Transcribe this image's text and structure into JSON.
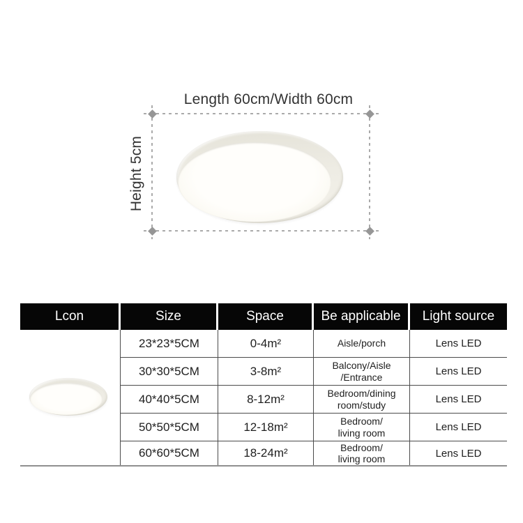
{
  "diagram": {
    "length_label": "Length 60cm/Width 60cm",
    "height_label": "Height 5cm",
    "lamp_icon": "round-ceiling-lamp",
    "dash_color": "#aaaaaa",
    "marker_color": "#969696"
  },
  "table": {
    "headers": [
      "Lcon",
      "Size",
      "Space",
      "Be applicable",
      "Light source"
    ],
    "header_bg": "#060606",
    "header_text_color": "#ffffff",
    "icon": "round-ceiling-lamp",
    "rows": [
      {
        "size": "23*23*5CM",
        "space": "0-4m²",
        "applicable": "Aisle/porch",
        "light_source": "Lens LED"
      },
      {
        "size": "30*30*5CM",
        "space": "3-8m²",
        "applicable": "Balcony/Aisle\n/Entrance",
        "light_source": "Lens LED"
      },
      {
        "size": "40*40*5CM",
        "space": "8-12m²",
        "applicable": "Bedroom/dining\nroom/study",
        "light_source": "Lens LED"
      },
      {
        "size": "50*50*5CM",
        "space": "12-18m²",
        "applicable": "Bedroom/\nliving room",
        "light_source": "Lens LED"
      },
      {
        "size": "60*60*5CM",
        "space": "18-24m²",
        "applicable": "Bedroom/\nliving room",
        "light_source": "Lens LED"
      }
    ]
  }
}
